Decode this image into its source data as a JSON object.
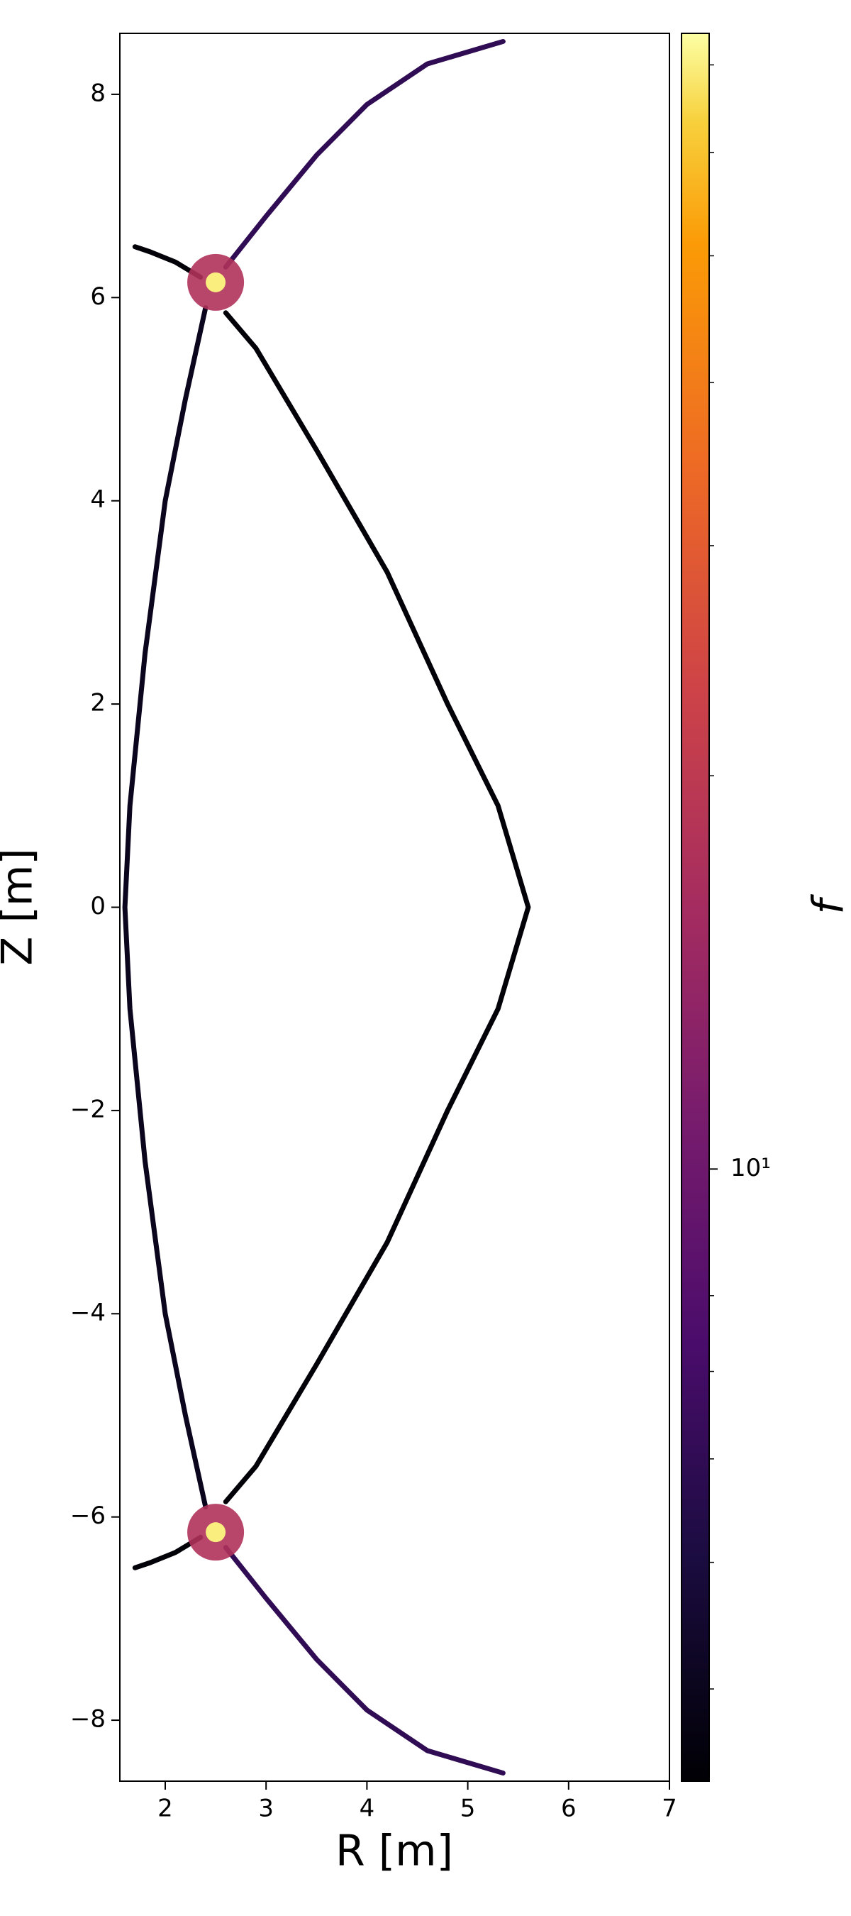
{
  "chart_data": {
    "type": "contour",
    "xlabel": "R [m]",
    "ylabel": "Z [m]",
    "colorbar_label": "f",
    "xlim": [
      1.55,
      7
    ],
    "ylim": [
      -8.6,
      8.6
    ],
    "xticks": [
      2,
      3,
      4,
      5,
      6,
      7
    ],
    "yticks": [
      {
        "value": -8,
        "label": "−8"
      },
      {
        "value": -6,
        "label": "−6"
      },
      {
        "value": -4,
        "label": "−4"
      },
      {
        "value": -2,
        "label": "−2"
      },
      0,
      2,
      4,
      6,
      8
    ],
    "colormap": "inferno",
    "clog": true,
    "clim": [
      3.4,
      74
    ],
    "cticks": [
      {
        "value": 10,
        "label": "10¹"
      }
    ],
    "cminor_ticks": [
      4,
      5,
      6,
      7,
      8,
      20,
      30,
      40,
      50,
      60,
      70
    ],
    "curves": [
      {
        "x": [
          2.6,
          3.0,
          3.5,
          4.0,
          4.6,
          5.35
        ],
        "y": [
          6.3,
          6.8,
          7.4,
          7.9,
          8.3,
          8.52
        ],
        "c": 6
      },
      {
        "x": [
          2.35,
          2.1,
          1.85,
          1.7
        ],
        "y": [
          6.2,
          6.35,
          6.45,
          6.5
        ],
        "c": 3.5
      },
      {
        "x": [
          2.6,
          2.9,
          3.5,
          4.2,
          4.8,
          5.3,
          5.6,
          5.3,
          4.8,
          4.2,
          3.5,
          2.9,
          2.6
        ],
        "y": [
          5.85,
          5.5,
          4.5,
          3.3,
          2,
          1,
          0,
          -1,
          -2,
          -3.3,
          -4.5,
          -5.5,
          -5.85
        ],
        "c": 3.5
      },
      {
        "x": [
          2.4,
          2.2,
          2.0,
          1.8,
          1.65,
          1.6,
          1.65,
          1.8,
          2.0,
          2.2,
          2.4
        ],
        "y": [
          5.9,
          5,
          4,
          2.5,
          1,
          0,
          -1,
          -2.5,
          -4,
          -5,
          -5.9
        ],
        "c": 4
      },
      {
        "x": [
          2.6,
          3.0,
          3.5,
          4.0,
          4.6,
          5.35
        ],
        "y": [
          -6.3,
          -6.8,
          -7.4,
          -7.9,
          -8.3,
          -8.52
        ],
        "c": 6
      },
      {
        "x": [
          2.35,
          2.1,
          1.85,
          1.7
        ],
        "y": [
          -6.2,
          -6.35,
          -6.45,
          -6.5
        ],
        "c": 3.5
      }
    ],
    "points": [
      {
        "x": 2.5,
        "y": 6.15,
        "c": 70
      },
      {
        "x": 2.5,
        "y": -6.15,
        "c": 70
      }
    ]
  }
}
